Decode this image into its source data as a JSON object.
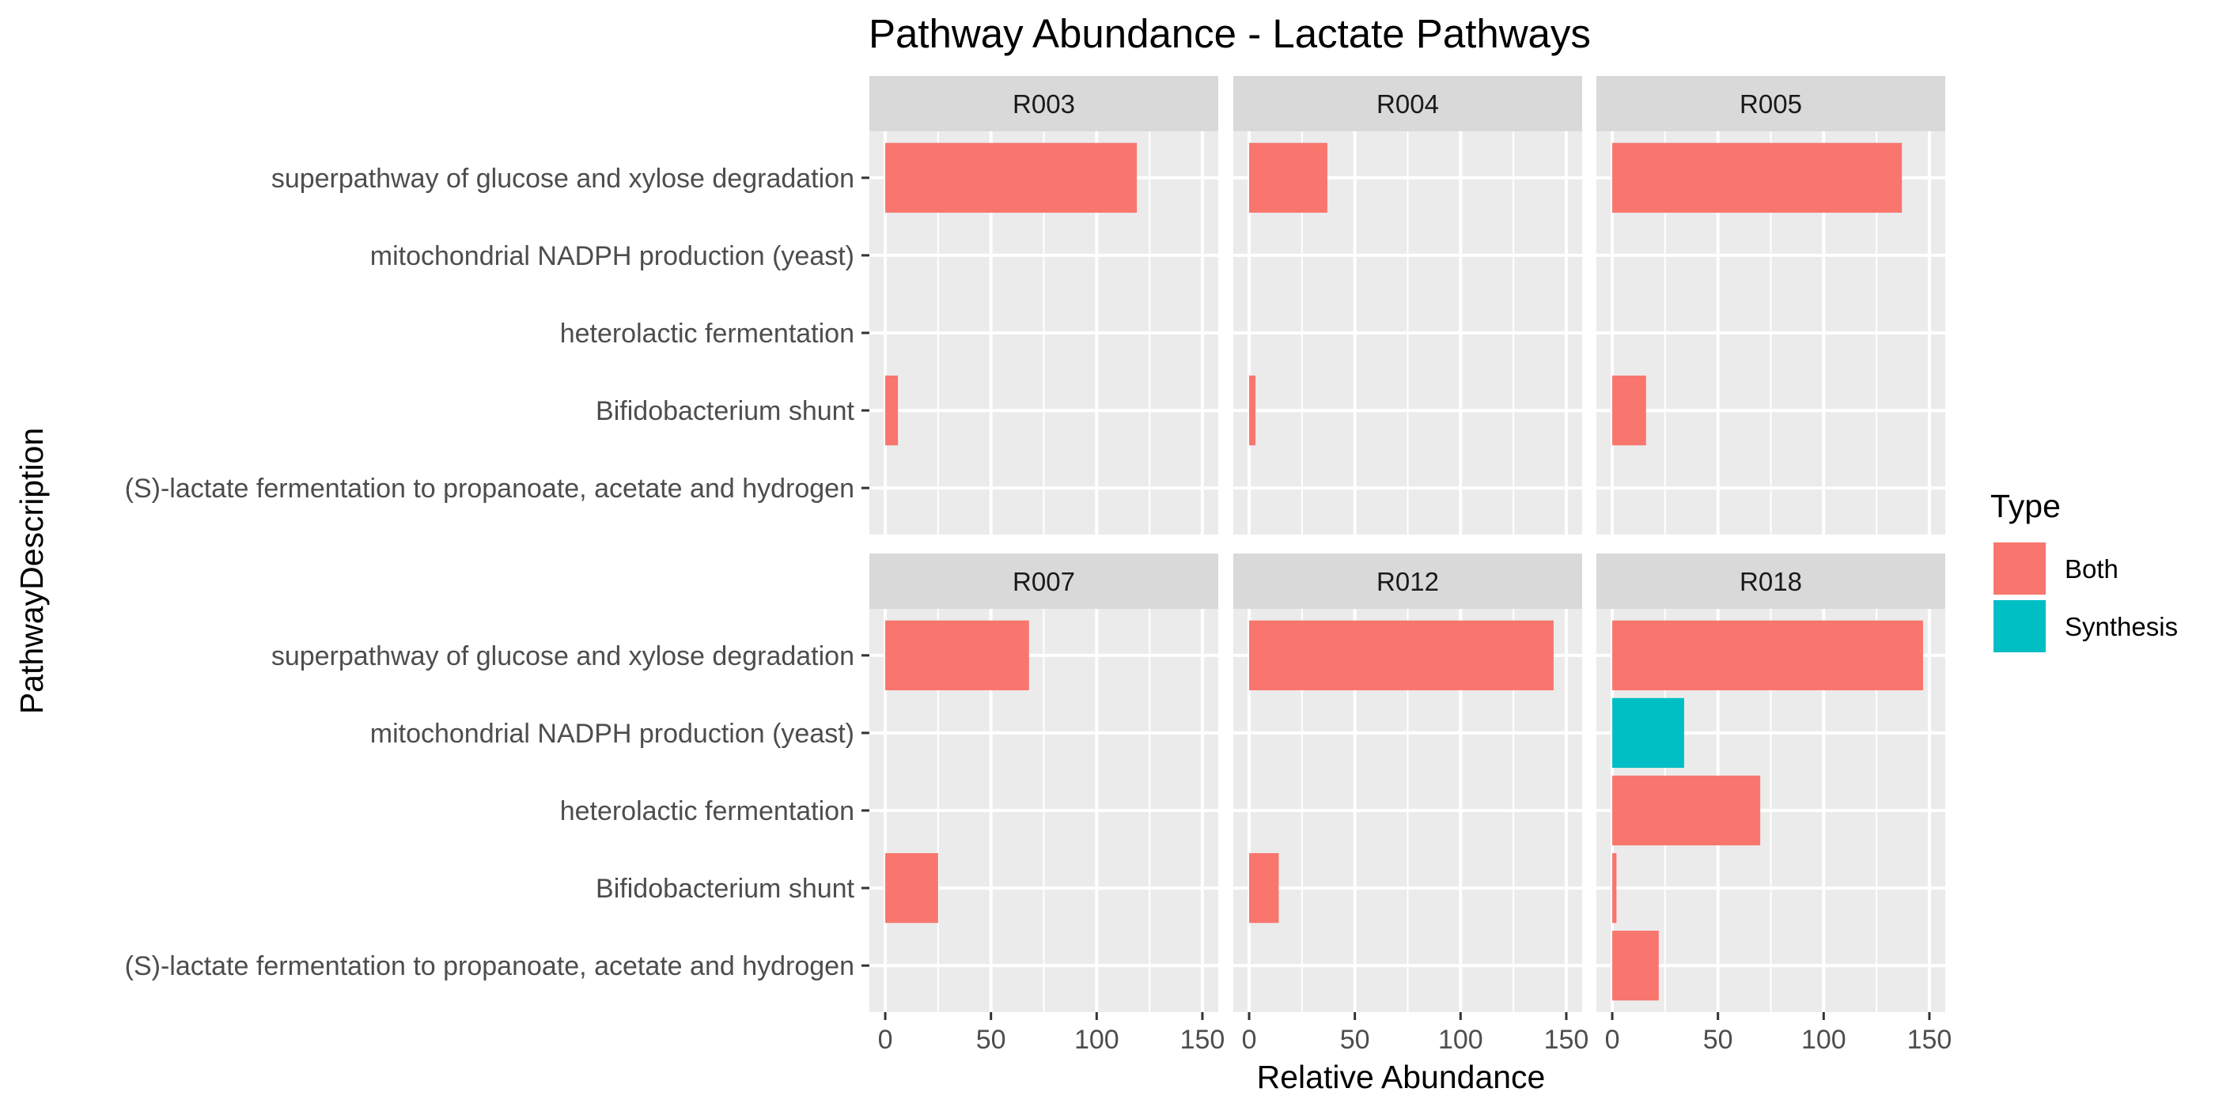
{
  "chart_data": {
    "type": "bar",
    "orientation": "horizontal",
    "title": "Pathway Abundance - Lactate Pathways",
    "xlabel": "Relative Abundance",
    "ylabel": "PathwayDescription",
    "xlim": [
      0,
      150
    ],
    "xticks": [
      0,
      50,
      100,
      150
    ],
    "grid": true,
    "legend": {
      "title": "Type",
      "position": "right",
      "entries": [
        {
          "label": "Both",
          "color": "#F8766D"
        },
        {
          "label": "Synthesis",
          "color": "#00BFC4"
        }
      ]
    },
    "categories": [
      "superpathway of glucose and xylose degradation",
      "mitochondrial NADPH production (yeast)",
      "heterolactic fermentation",
      "Bifidobacterium shunt",
      "(S)-lactate fermentation to propanoate, acetate and hydrogen"
    ],
    "facets": [
      {
        "label": "R003",
        "bars": [
          {
            "category": "superpathway of glucose and xylose degradation",
            "value": 119,
            "type": "Both"
          },
          {
            "category": "Bifidobacterium shunt",
            "value": 6,
            "type": "Both"
          }
        ]
      },
      {
        "label": "R004",
        "bars": [
          {
            "category": "superpathway of glucose and xylose degradation",
            "value": 37,
            "type": "Both"
          },
          {
            "category": "Bifidobacterium shunt",
            "value": 3,
            "type": "Both"
          }
        ]
      },
      {
        "label": "R005",
        "bars": [
          {
            "category": "superpathway of glucose and xylose degradation",
            "value": 137,
            "type": "Both"
          },
          {
            "category": "Bifidobacterium shunt",
            "value": 16,
            "type": "Both"
          }
        ]
      },
      {
        "label": "R007",
        "bars": [
          {
            "category": "superpathway of glucose and xylose degradation",
            "value": 68,
            "type": "Both"
          },
          {
            "category": "Bifidobacterium shunt",
            "value": 25,
            "type": "Both"
          }
        ]
      },
      {
        "label": "R012",
        "bars": [
          {
            "category": "superpathway of glucose and xylose degradation",
            "value": 144,
            "type": "Both"
          },
          {
            "category": "Bifidobacterium shunt",
            "value": 14,
            "type": "Both"
          }
        ]
      },
      {
        "label": "R018",
        "bars": [
          {
            "category": "superpathway of glucose and xylose degradation",
            "value": 147,
            "type": "Both"
          },
          {
            "category": "mitochondrial NADPH production (yeast)",
            "value": 34,
            "type": "Synthesis"
          },
          {
            "category": "heterolactic fermentation",
            "value": 70,
            "type": "Both"
          },
          {
            "category": "Bifidobacterium shunt",
            "value": 2,
            "type": "Both"
          },
          {
            "category": "(S)-lactate fermentation to propanoate, acetate and hydrogen",
            "value": 22,
            "type": "Both"
          }
        ]
      }
    ]
  }
}
